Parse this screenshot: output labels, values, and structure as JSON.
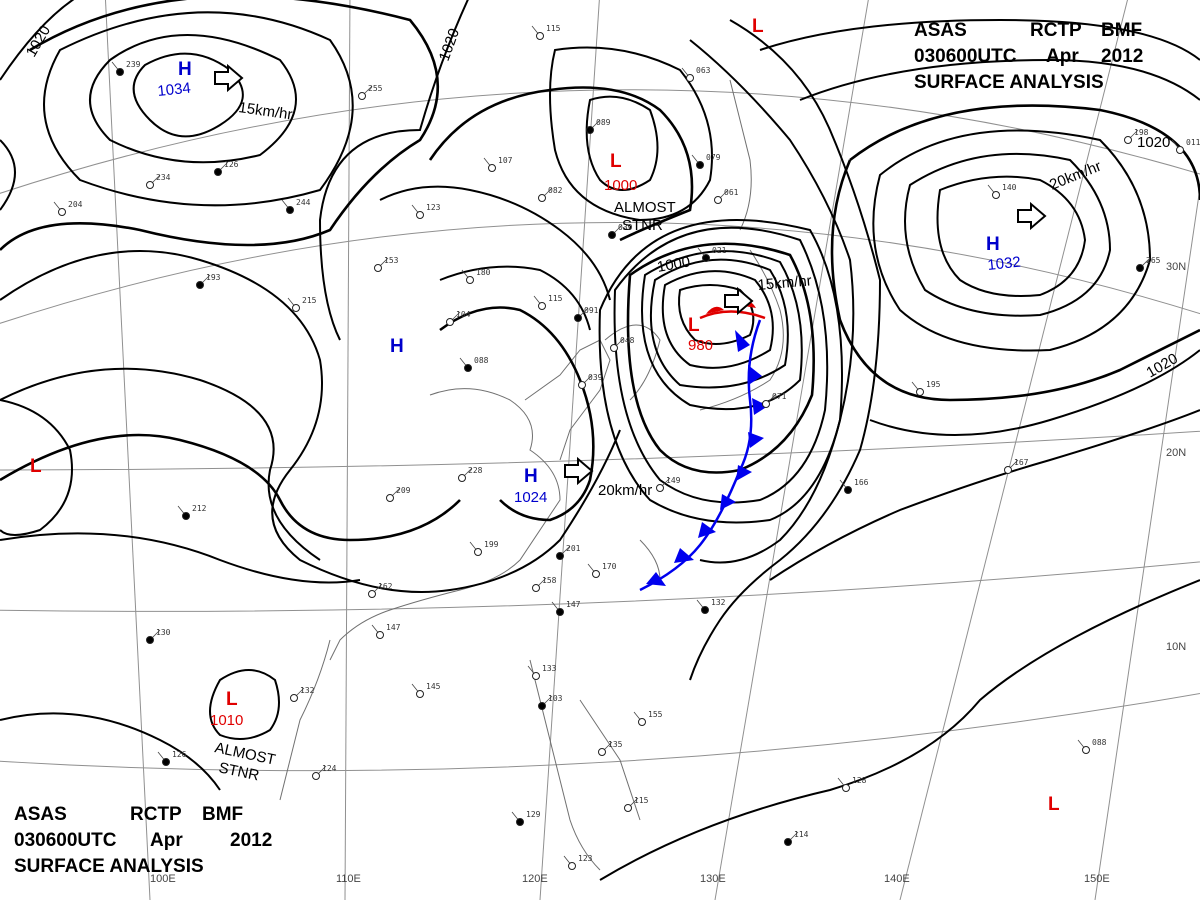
{
  "header": {
    "line1": [
      "ASAS",
      "RCTP",
      "BMF"
    ],
    "line2": [
      "030600UTC",
      "Apr",
      "2012"
    ],
    "line3": "SURFACE ANALYSIS"
  },
  "colors": {
    "high": "#0000cc",
    "low": "#e00000",
    "isobar": "#000000",
    "grid": "#909090",
    "coast": "#707070"
  },
  "systems": [
    {
      "type": "H",
      "pressure": "1034"
    },
    {
      "type": "H",
      "pressure": ""
    },
    {
      "type": "H",
      "pressure": "1024"
    },
    {
      "type": "H",
      "pressure": "1032"
    },
    {
      "type": "L",
      "pressure": "1000"
    },
    {
      "type": "L",
      "pressure": "980"
    },
    {
      "type": "L",
      "pressure": "1010"
    },
    {
      "type": "L",
      "pressure": ""
    },
    {
      "type": "L",
      "pressure": ""
    },
    {
      "type": "L",
      "pressure": ""
    }
  ],
  "motion_labels": [
    "15km/hr",
    "20km/hr",
    "15km/hr",
    "20km/hr"
  ],
  "annotations": [
    {
      "text": [
        "ALMOST",
        "STNR"
      ]
    },
    {
      "text": [
        "ALMOST",
        "STNR"
      ]
    }
  ],
  "isobar_labels": [
    "1020",
    "1020",
    "1000",
    "1020",
    "1020"
  ],
  "grid_labels": {
    "longitudes": [
      "100E",
      "110E",
      "120E",
      "130E",
      "140E",
      "150E"
    ],
    "latitudes": [
      "30N",
      "20N",
      "10N"
    ]
  },
  "stations": [
    "239",
    "234",
    "204",
    "193",
    "215",
    "255",
    "244",
    "153",
    "123",
    "126",
    "180",
    "104",
    "088",
    "039",
    "107",
    "089",
    "115",
    "082",
    "079",
    "061",
    "063",
    "091",
    "115",
    "048",
    "166",
    "167",
    "195",
    "265",
    "140",
    "228",
    "212",
    "209",
    "199",
    "201",
    "170",
    "158",
    "147",
    "162",
    "147",
    "130",
    "145",
    "132",
    "126",
    "124",
    "133",
    "103",
    "155",
    "135",
    "129",
    "115",
    "123",
    "114",
    "128",
    "149",
    "132",
    "071",
    "088",
    "039",
    "011",
    "198",
    "021"
  ]
}
